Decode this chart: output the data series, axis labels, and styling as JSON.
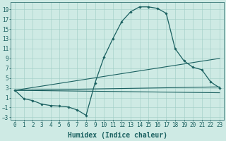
{
  "background_color": "#ceeae4",
  "grid_color": "#9ecdc5",
  "line_color": "#1a6060",
  "xlabel": "Humidex (Indice chaleur)",
  "xlabel_fontsize": 7,
  "tick_fontsize": 5.5,
  "ylim": [
    -3.5,
    20.5
  ],
  "xlim": [
    -0.5,
    23.5
  ],
  "yticks": [
    -3,
    -1,
    1,
    3,
    5,
    7,
    9,
    11,
    13,
    15,
    17,
    19
  ],
  "xticks": [
    0,
    1,
    2,
    3,
    4,
    5,
    6,
    7,
    8,
    9,
    10,
    11,
    12,
    13,
    14,
    15,
    16,
    17,
    18,
    19,
    20,
    21,
    22,
    23
  ],
  "main_line": {
    "x": [
      0,
      1,
      2,
      3,
      4,
      5,
      6,
      7,
      8,
      9,
      10,
      11,
      12,
      13,
      14,
      15,
      16,
      17,
      18,
      19,
      20,
      21,
      22,
      23
    ],
    "y": [
      2.5,
      0.8,
      0.4,
      -0.3,
      -0.6,
      -0.7,
      -0.9,
      -1.5,
      -2.6,
      4.0,
      9.2,
      13.0,
      16.5,
      18.5,
      19.5,
      19.5,
      19.2,
      18.2,
      11.0,
      8.5,
      7.2,
      6.7,
      4.2,
      3.0
    ],
    "marker": "D",
    "markersize": 1.8,
    "linewidth": 0.9
  },
  "straight_lines": [
    {
      "x": [
        0,
        23
      ],
      "y": [
        2.5,
        9.0
      ],
      "linewidth": 0.8
    },
    {
      "x": [
        0,
        23
      ],
      "y": [
        2.5,
        3.2
      ],
      "linewidth": 0.8
    },
    {
      "x": [
        0,
        23
      ],
      "y": [
        2.5,
        2.0
      ],
      "linewidth": 0.8
    }
  ]
}
